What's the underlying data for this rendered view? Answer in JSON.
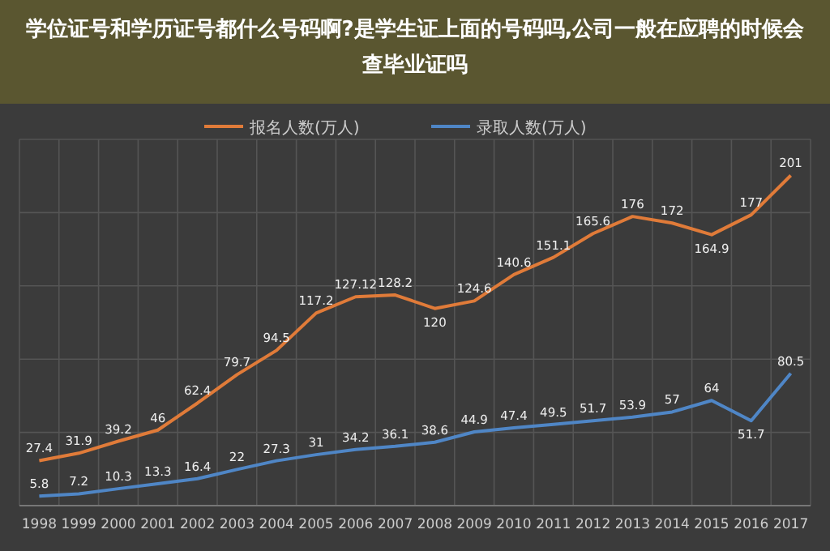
{
  "chart_data": {
    "type": "line",
    "title": "学位证号和学历证号都什么号码啊?是学生证上面的号码吗,公司一般在应聘的时候会查毕业证吗",
    "categories": [
      "1998",
      "1999",
      "2000",
      "2001",
      "2002",
      "2003",
      "2004",
      "2005",
      "2006",
      "2007",
      "2008",
      "2009",
      "2010",
      "2011",
      "2012",
      "2013",
      "2014",
      "2015",
      "2016",
      "2017"
    ],
    "series": [
      {
        "name": "报名人数(万人)",
        "color": "#e07b39",
        "values": [
          27.4,
          31.9,
          39.2,
          46,
          62.4,
          79.7,
          94.5,
          117.2,
          127.12,
          128.2,
          120,
          124.6,
          140.6,
          151.1,
          165.6,
          176,
          172,
          164.9,
          177,
          201
        ]
      },
      {
        "name": "录取人数(万人)",
        "color": "#4f86c6",
        "values": [
          5.8,
          7.2,
          10.3,
          13.3,
          16.4,
          22,
          27.3,
          31,
          34.2,
          36.1,
          38.6,
          44.9,
          47.4,
          49.5,
          51.7,
          53.9,
          57,
          64,
          51.7,
          80.5
        ]
      }
    ],
    "data_labels": true,
    "grid": true,
    "legend": "top",
    "tick_labels": "x"
  }
}
